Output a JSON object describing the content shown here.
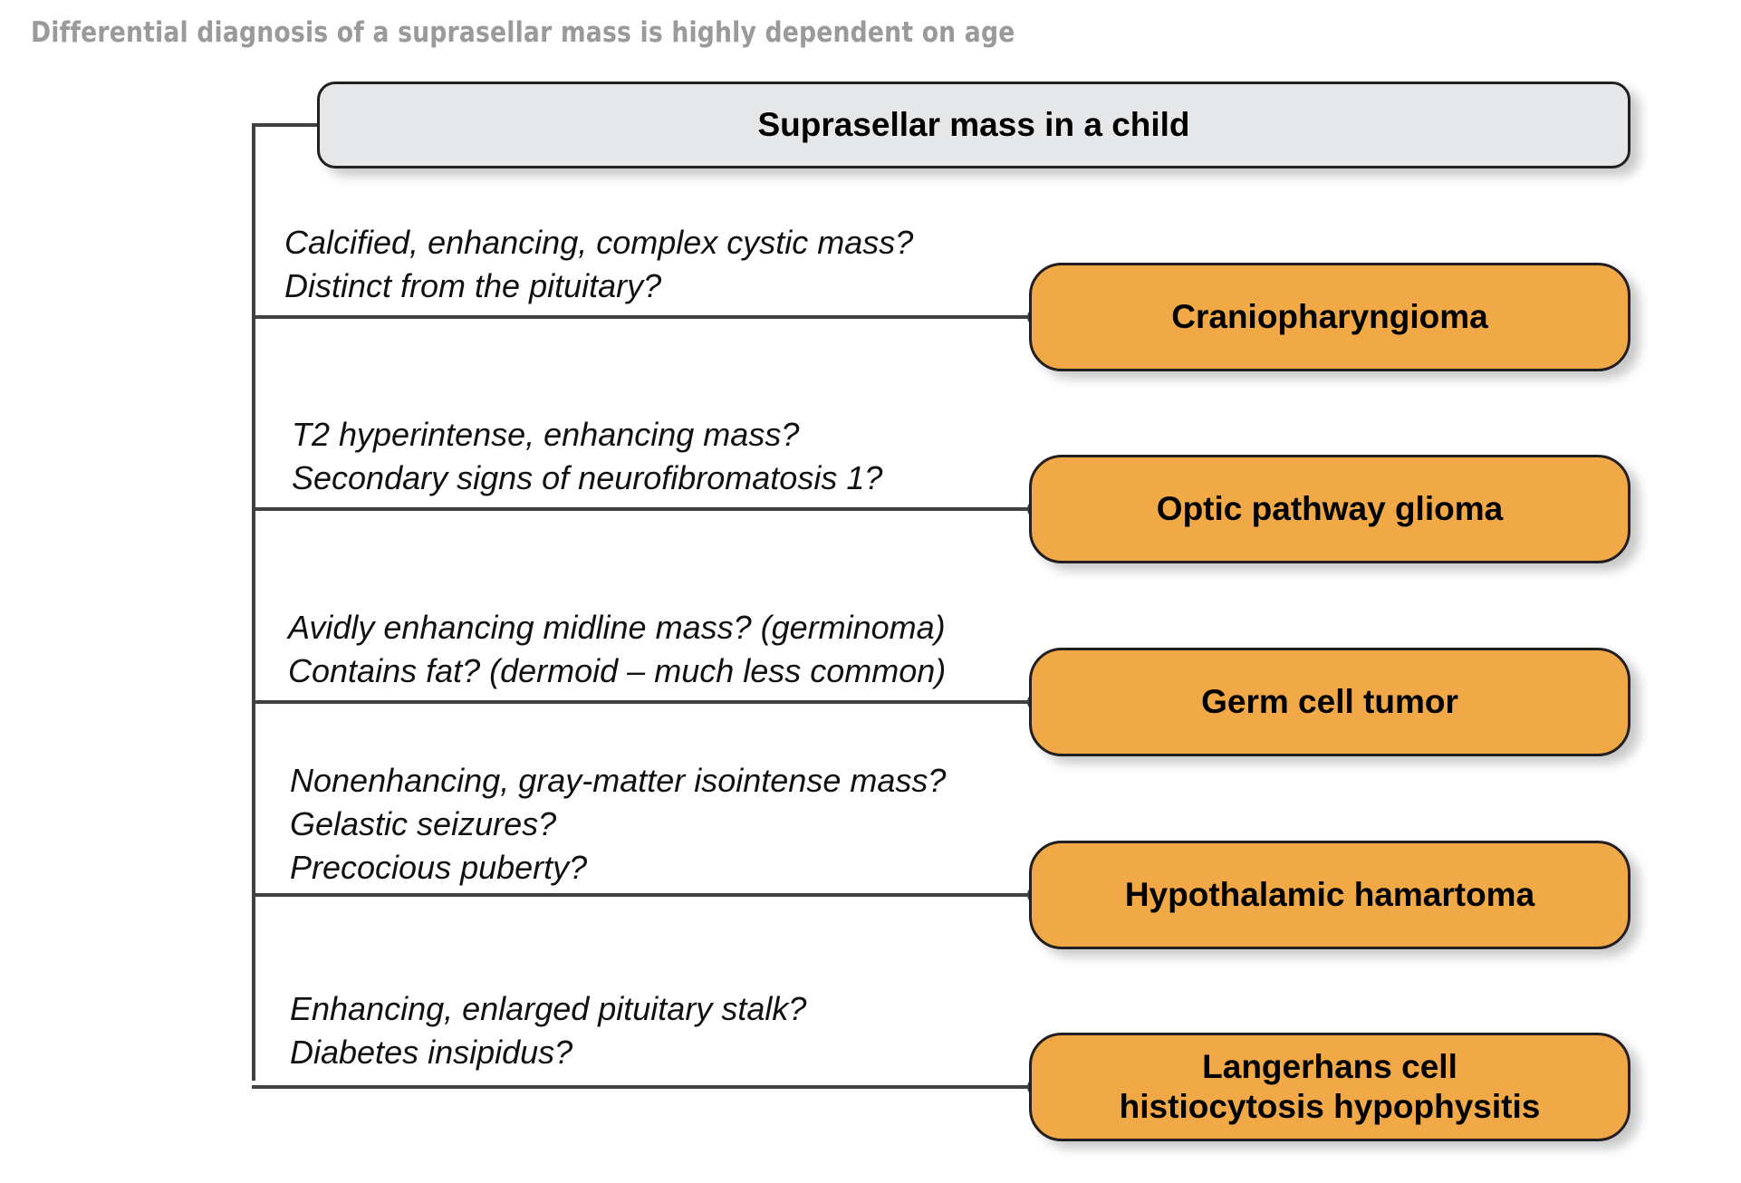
{
  "title": "Differential diagnosis of a suprasellar mass is highly dependent on age",
  "root": {
    "label": "Suprasellar mass in a child"
  },
  "branches": [
    {
      "question_lines": [
        "Calcified, enhancing, complex cystic mass?",
        "Distinct from the pituitary?"
      ],
      "diagnosis": "Craniopharyngioma"
    },
    {
      "question_lines": [
        "T2 hyperintense, enhancing mass?",
        "Secondary signs of neurofibromatosis 1?"
      ],
      "diagnosis": "Optic pathway glioma"
    },
    {
      "question_lines": [
        "Avidly enhancing midline mass? (germinoma)",
        "Contains fat? (dermoid – much less common)"
      ],
      "diagnosis": "Germ cell tumor"
    },
    {
      "question_lines": [
        "Nonenhancing, gray-matter isointense mass?",
        "Gelastic seizures?",
        "Precocious puberty?"
      ],
      "diagnosis": "Hypothalamic hamartoma"
    },
    {
      "question_lines": [
        "Enhancing, enlarged pituitary stalk?",
        "Diabetes insipidus?"
      ],
      "diagnosis": "Langerhans cell\nhistiocytosis hypophysitis"
    }
  ],
  "colors": {
    "root_fill": "#e6e7e8",
    "leaf_fill": "#f0a946",
    "line": "#414042",
    "title": "#9a9a9a"
  }
}
